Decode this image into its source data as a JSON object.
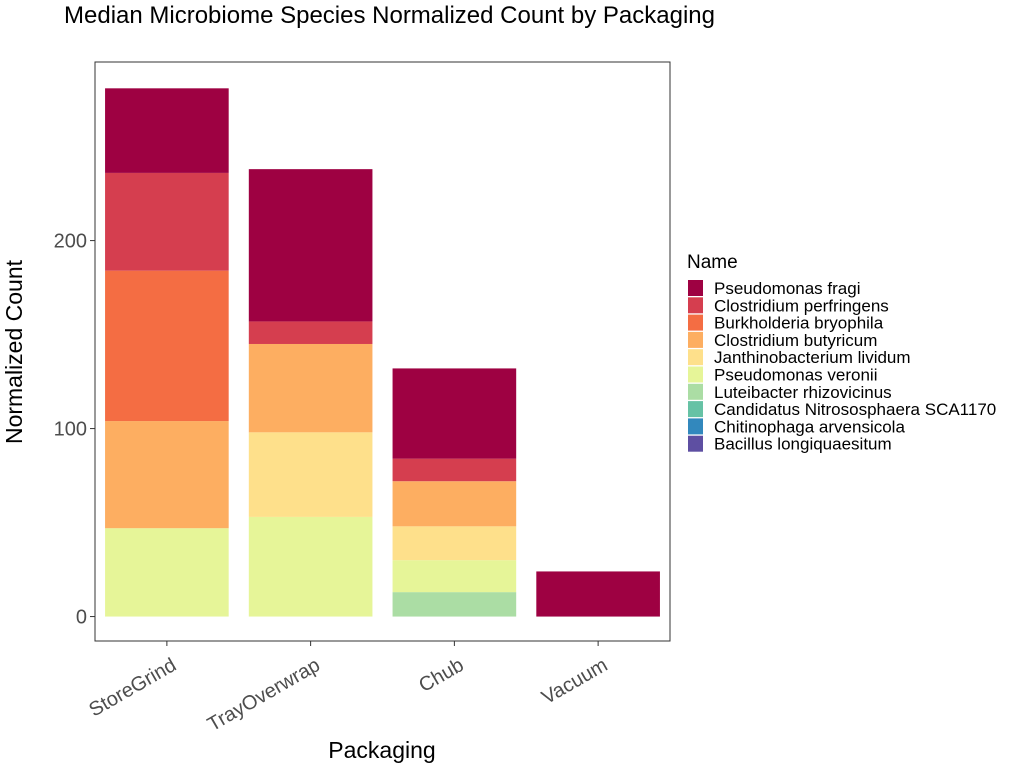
{
  "chart_data": {
    "type": "bar",
    "stacked": true,
    "title": "Median Microbiome Species Normalized Count by Packaging",
    "xlabel": "Packaging",
    "ylabel": "Normalized Count",
    "categories": [
      "StoreGrind",
      "TrayOverwrap",
      "Chub",
      "Vacuum"
    ],
    "ylim": [
      -13,
      295
    ],
    "yticks": [
      0,
      100,
      200
    ],
    "grid": false,
    "legend": {
      "title": "Name",
      "position": "right"
    },
    "series": [
      {
        "name": "Pseudomonas fragi",
        "color": "#9E0142",
        "values": [
          45,
          81,
          48,
          24
        ]
      },
      {
        "name": "Clostridium perfringens",
        "color": "#D53E4F",
        "values": [
          52,
          12,
          12,
          0
        ]
      },
      {
        "name": "Burkholderia bryophila",
        "color": "#F46D43",
        "values": [
          80,
          0,
          0,
          0
        ]
      },
      {
        "name": "Clostridium butyricum",
        "color": "#FDAE61",
        "values": [
          57,
          47,
          24,
          0
        ]
      },
      {
        "name": "Janthinobacterium lividum",
        "color": "#FEE08B",
        "values": [
          0,
          45,
          18,
          0
        ]
      },
      {
        "name": "Pseudomonas veronii",
        "color": "#E6F598",
        "values": [
          47,
          53,
          17,
          0
        ]
      },
      {
        "name": "Luteibacter rhizovicinus",
        "color": "#ABDDA4",
        "values": [
          0,
          0,
          13,
          0
        ]
      },
      {
        "name": "Candidatus Nitrososphaera SCA1170",
        "color": "#66C2A5",
        "values": [
          0,
          0,
          0,
          0
        ]
      },
      {
        "name": "Chitinophaga arvensicola",
        "color": "#3288BD",
        "values": [
          0,
          0,
          0,
          0
        ]
      },
      {
        "name": "Bacillus longiquaesitum",
        "color": "#5E4FA2",
        "values": [
          0,
          0,
          0,
          0
        ]
      }
    ]
  }
}
